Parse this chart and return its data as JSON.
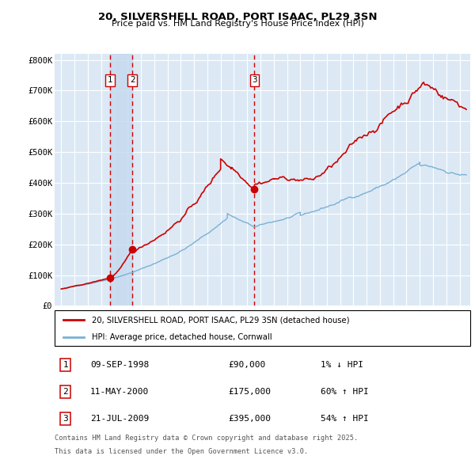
{
  "title1": "20, SILVERSHELL ROAD, PORT ISAAC, PL29 3SN",
  "title2": "Price paid vs. HM Land Registry's House Price Index (HPI)",
  "plot_bg_color": "#dce9f5",
  "grid_color": "#ffffff",
  "red_line_color": "#cc0000",
  "blue_line_color": "#7ab0d4",
  "vline_color": "#cc0000",
  "sale_markers": [
    {
      "date_num": 1998.69,
      "price": 90000,
      "label": "1"
    },
    {
      "date_num": 2000.36,
      "price": 175000,
      "label": "2"
    },
    {
      "date_num": 2009.55,
      "price": 395000,
      "label": "3"
    }
  ],
  "legend_red": "20, SILVERSHELL ROAD, PORT ISAAC, PL29 3SN (detached house)",
  "legend_blue": "HPI: Average price, detached house, Cornwall",
  "table_entries": [
    {
      "num": "1",
      "date": "09-SEP-1998",
      "price": "£90,000",
      "change": "1% ↓ HPI"
    },
    {
      "num": "2",
      "date": "11-MAY-2000",
      "price": "£175,000",
      "change": "60% ↑ HPI"
    },
    {
      "num": "3",
      "date": "21-JUL-2009",
      "price": "£395,000",
      "change": "54% ↑ HPI"
    }
  ],
  "footnote1": "Contains HM Land Registry data © Crown copyright and database right 2025.",
  "footnote2": "This data is licensed under the Open Government Licence v3.0.",
  "ylim": [
    0,
    820000
  ],
  "yticks": [
    0,
    100000,
    200000,
    300000,
    400000,
    500000,
    600000,
    700000,
    800000
  ],
  "ytick_labels": [
    "£0",
    "£100K",
    "£200K",
    "£300K",
    "£400K",
    "£500K",
    "£600K",
    "£700K",
    "£800K"
  ],
  "xlim_start": 1994.5,
  "xlim_end": 2025.8
}
